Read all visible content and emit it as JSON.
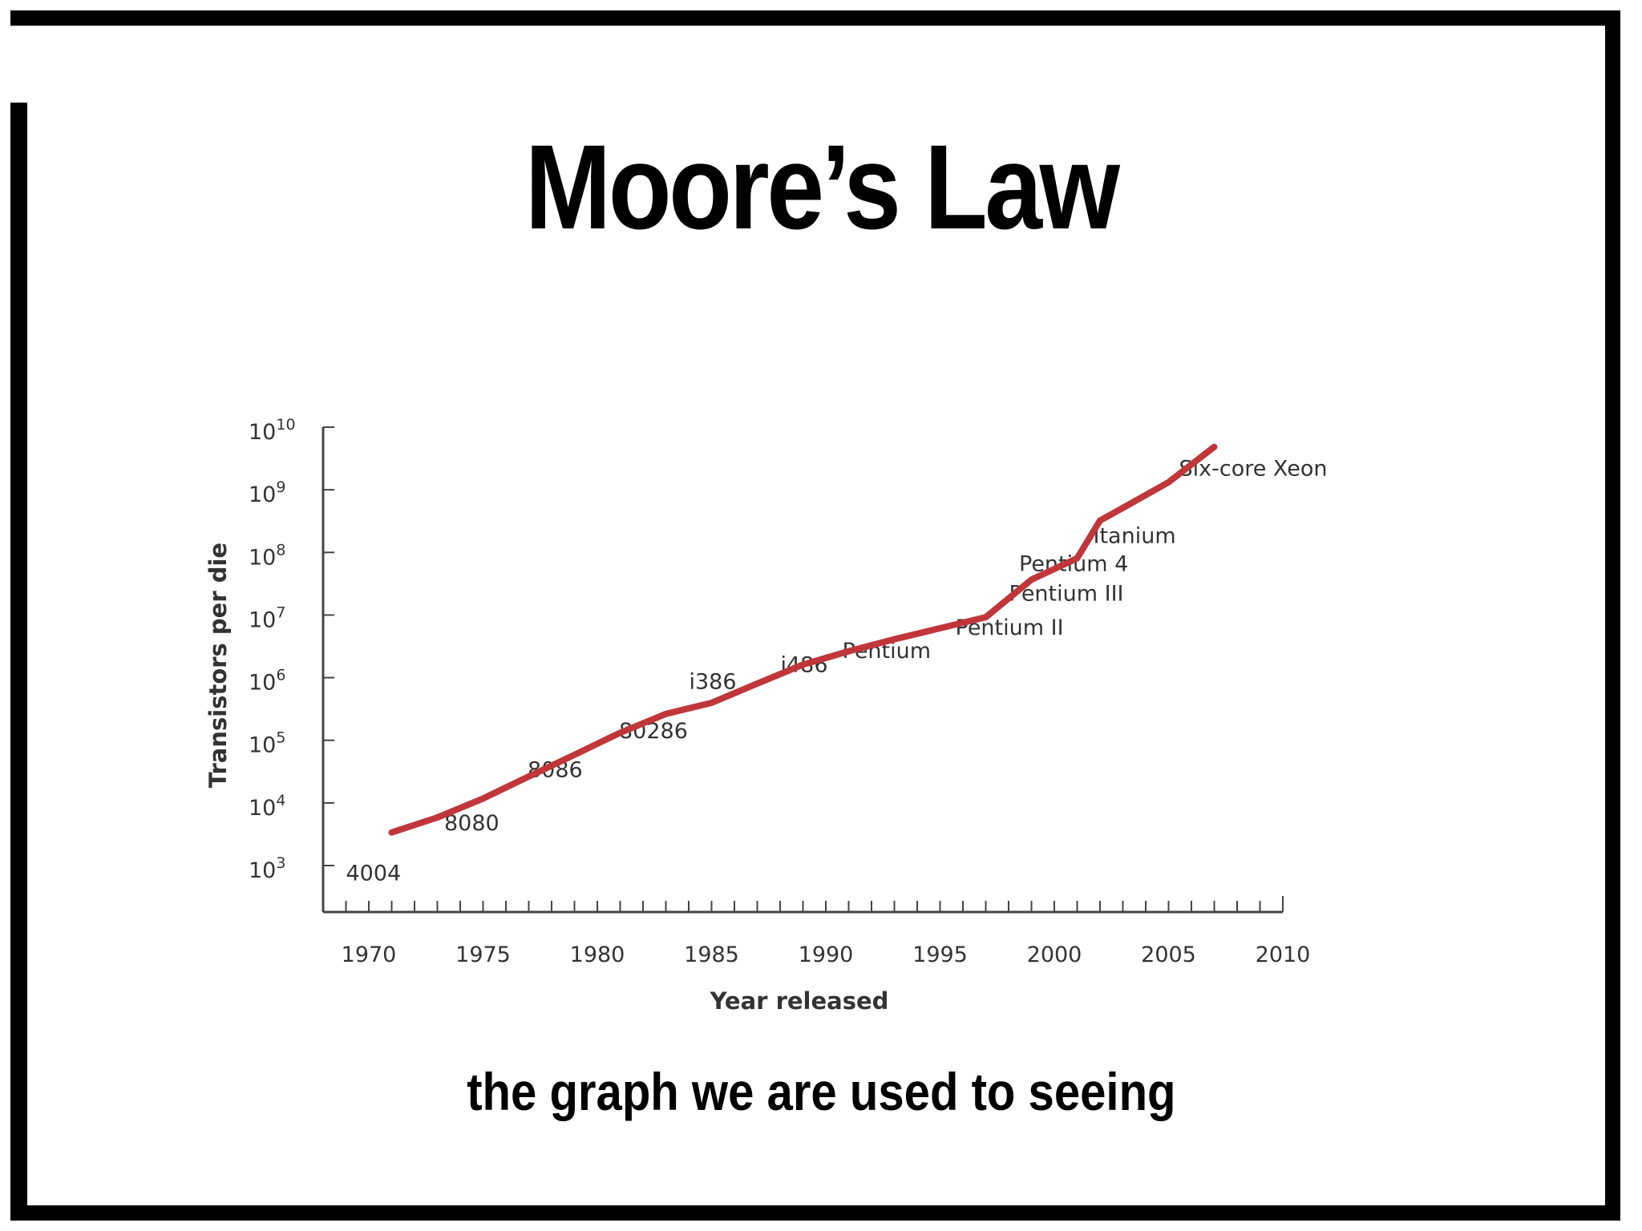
{
  "slide": {
    "title": "Moore’s Law",
    "subtitle": "the graph we are used to seeing"
  },
  "colors": {
    "line": "#c0363a",
    "axis": "#444444",
    "frame": "#000000"
  },
  "chart_data": {
    "type": "line",
    "xlabel": "Year released",
    "ylabel": "Transistors per die",
    "xlim": [
      1968,
      2010
    ],
    "ylim": [
      1000,
      10000000000
    ],
    "yscale": "log",
    "xticks": [
      1970,
      1975,
      1980,
      1985,
      1990,
      1995,
      2000,
      2005,
      2010
    ],
    "yticks": [
      {
        "base": "10",
        "exp": "3",
        "value": 1000
      },
      {
        "base": "10",
        "exp": "4",
        "value": 10000
      },
      {
        "base": "10",
        "exp": "5",
        "value": 100000
      },
      {
        "base": "10",
        "exp": "6",
        "value": 1000000
      },
      {
        "base": "10",
        "exp": "7",
        "value": 10000000
      },
      {
        "base": "10",
        "exp": "8",
        "value": 100000000
      },
      {
        "base": "10",
        "exp": "9",
        "value": 1000000000
      },
      {
        "base": "10",
        "exp": "10",
        "value": 10000000000
      }
    ],
    "grid": false,
    "series": [
      {
        "x": [
          1971,
          1973,
          1975,
          1977,
          1979,
          1981,
          1983,
          1985,
          1987,
          1989,
          1991,
          1993,
          1995,
          1997,
          1999,
          2001,
          2002,
          2003,
          2005,
          2007
        ],
        "y": [
          2300,
          4000,
          8000,
          18000,
          40000,
          90000,
          180000,
          270000,
          550000,
          1100000,
          1800000,
          2800000,
          4200000,
          6300000,
          25000000,
          55000000,
          220000000,
          350000000,
          900000000,
          3300000000
        ]
      }
    ],
    "annotations": [
      {
        "text": "4004",
        "x": 1971,
        "y": 2300
      },
      {
        "text": "8080",
        "x": 1974,
        "y": 4500
      },
      {
        "text": "8086",
        "x": 1978,
        "y": 29000
      },
      {
        "text": "80286",
        "x": 1982,
        "y": 134000
      },
      {
        "text": "i386",
        "x": 1985,
        "y": 275000
      },
      {
        "text": "i486",
        "x": 1989,
        "y": 1200000
      },
      {
        "text": "Pentium",
        "x": 1993,
        "y": 3100000
      },
      {
        "text": "Pentium II",
        "x": 1997,
        "y": 7500000
      },
      {
        "text": "Pentium III",
        "x": 1999,
        "y": 28000000
      },
      {
        "text": "Pentium 4",
        "x": 2000,
        "y": 42000000
      },
      {
        "text": "Itanium",
        "x": 2003,
        "y": 220000000
      },
      {
        "text": "Six-core Xeon",
        "x": 2007,
        "y": 1900000000
      }
    ]
  }
}
